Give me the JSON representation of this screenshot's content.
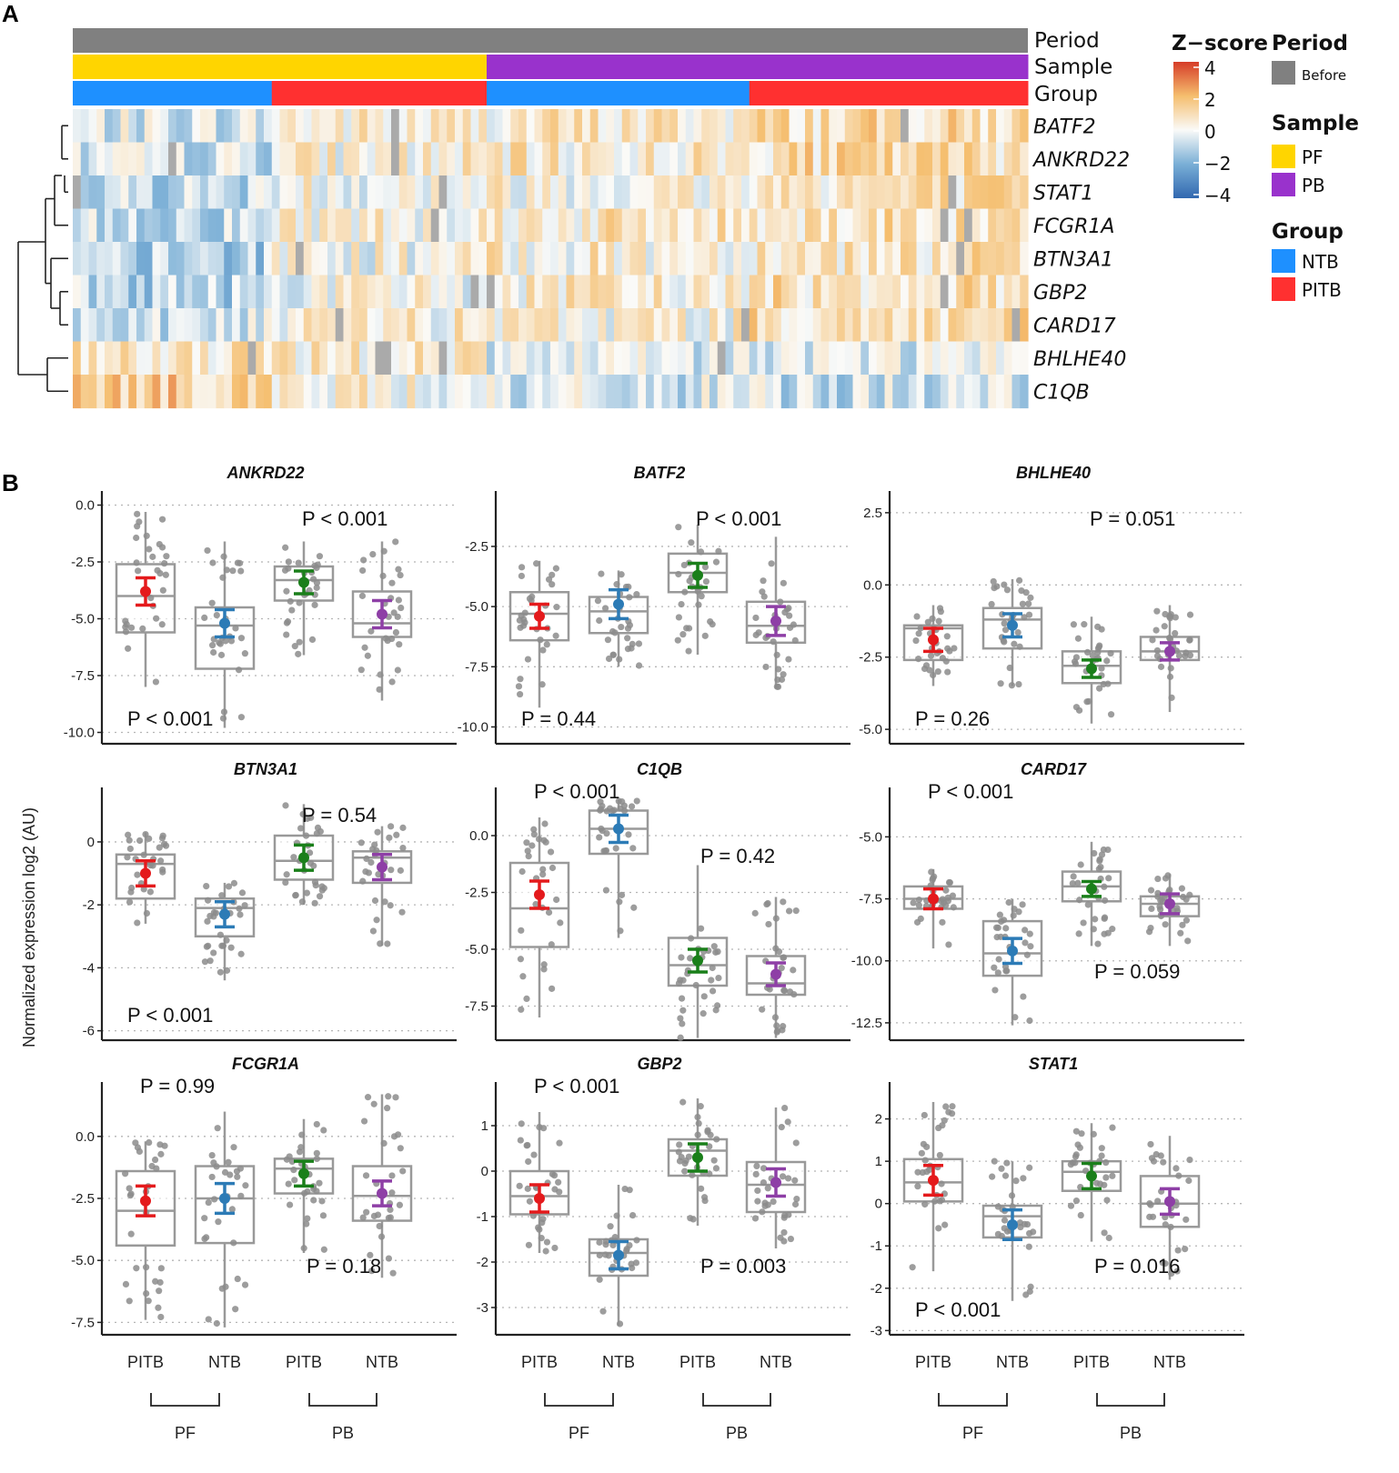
{
  "panel_labels": {
    "a": "A",
    "b": "B"
  },
  "heatmap": {
    "annotation_rows": [
      "Period",
      "Sample",
      "Group"
    ],
    "genes": [
      "BATF2",
      "ANKRD22",
      "STAT1",
      "FCGR1A",
      "BTN3A1",
      "GBP2",
      "CARD17",
      "BHLHE40",
      "C1QB"
    ],
    "n_samples": 120,
    "sample_blocks": [
      {
        "sample": "PF",
        "group": "NTB",
        "count": 25
      },
      {
        "sample": "PF",
        "group": "PITB",
        "count": 27
      },
      {
        "sample": "PB",
        "group": "NTB",
        "count": 33
      },
      {
        "sample": "PB",
        "group": "PITB",
        "count": 35
      }
    ],
    "colorbar": {
      "title": "Z−score",
      "ticks": [
        "4",
        "2",
        "0",
        "−2",
        "−4"
      ],
      "values": [
        4,
        2,
        0,
        -2,
        -4
      ]
    },
    "legend": {
      "period": {
        "title": "Period",
        "items": [
          {
            "label": "Before",
            "color": "#808080"
          }
        ]
      },
      "sample": {
        "title": "Sample",
        "items": [
          {
            "label": "PF",
            "color": "#FFD500"
          },
          {
            "label": "PB",
            "color": "#9932CC"
          }
        ]
      },
      "group": {
        "title": "Group",
        "items": [
          {
            "label": "NTB",
            "color": "#1E90FF"
          },
          {
            "label": "PITB",
            "color": "#FF3030"
          }
        ]
      }
    }
  },
  "boxplots": {
    "y_axis_label": "Normalized expression  log2 (AU)",
    "x_categories": [
      "PITB",
      "NTB",
      "PITB",
      "NTB"
    ],
    "brackets": [
      "PF",
      "PB"
    ],
    "colors": {
      "PF_PITB": "#E41A1C",
      "PF_NTB": "#2C7BB6",
      "PB_PITB": "#1A7F1A",
      "PB_NTB": "#8E3FA6"
    }
  },
  "chart_data": [
    {
      "type": "box",
      "title": "ANKRD22",
      "ylim": [
        -10.5,
        0.3
      ],
      "yticks": [
        0.0,
        -2.5,
        -5.0,
        -7.5,
        -10.0
      ],
      "tick_labels": [
        "0.0",
        "-2.5",
        "-5.0",
        "-7.5",
        "-10.0"
      ],
      "groups": [
        {
          "label": "PITB",
          "q1": -5.6,
          "median": -4.0,
          "q3": -2.6,
          "wlo": -8.0,
          "whi": -0.3,
          "mean": -3.8,
          "ci": 0.6
        },
        {
          "label": "NTB",
          "q1": -7.2,
          "median": -5.3,
          "q3": -4.5,
          "wlo": -9.8,
          "whi": -1.6,
          "mean": -5.2,
          "ci": 0.6
        },
        {
          "label": "PITB",
          "q1": -4.2,
          "median": -3.3,
          "q3": -2.7,
          "wlo": -6.6,
          "whi": -1.6,
          "mean": -3.4,
          "ci": 0.5
        },
        {
          "label": "NTB",
          "q1": -5.8,
          "median": -5.2,
          "q3": -3.8,
          "wlo": -8.6,
          "whi": -1.6,
          "mean": -4.8,
          "ci": 0.6
        }
      ],
      "pvalues": [
        {
          "text": "P < 0.001",
          "pos": "bottom-left"
        },
        {
          "text": "P < 0.001",
          "pos": "top-right"
        }
      ]
    },
    {
      "type": "box",
      "title": "BATF2",
      "ylim": [
        -10.7,
        -0.5
      ],
      "yticks": [
        -2.5,
        -5.0,
        -7.5,
        -10.0
      ],
      "tick_labels": [
        "-2.5",
        "-5.0",
        "-7.5",
        "-10.0"
      ],
      "groups": [
        {
          "label": "PITB",
          "q1": -6.4,
          "median": -5.3,
          "q3": -4.4,
          "wlo": -9.2,
          "whi": -3.1,
          "mean": -5.4,
          "ci": 0.5
        },
        {
          "label": "NTB",
          "q1": -6.1,
          "median": -5.2,
          "q3": -4.6,
          "wlo": -7.5,
          "whi": -3.5,
          "mean": -4.9,
          "ci": 0.6
        },
        {
          "label": "PITB",
          "q1": -4.4,
          "median": -3.6,
          "q3": -2.8,
          "wlo": -7.0,
          "whi": -1.6,
          "mean": -3.7,
          "ci": 0.5
        },
        {
          "label": "NTB",
          "q1": -6.5,
          "median": -5.8,
          "q3": -4.8,
          "wlo": -8.4,
          "whi": -2.1,
          "mean": -5.6,
          "ci": 0.6
        }
      ],
      "pvalues": [
        {
          "text": "P = 0.44",
          "pos": "bottom-left"
        },
        {
          "text": "P < 0.001",
          "pos": "top-right"
        }
      ]
    },
    {
      "type": "box",
      "title": "BHLHE40",
      "ylim": [
        -5.5,
        3.0
      ],
      "yticks": [
        2.5,
        0.0,
        -2.5,
        -5.0
      ],
      "tick_labels": [
        "2.5",
        "0.0",
        "-2.5",
        "-5.0"
      ],
      "groups": [
        {
          "label": "PITB",
          "q1": -2.6,
          "median": -1.5,
          "q3": -1.4,
          "wlo": -3.5,
          "whi": -0.7,
          "mean": -1.9,
          "ci": 0.4
        },
        {
          "label": "NTB",
          "q1": -2.2,
          "median": -1.2,
          "q3": -0.8,
          "wlo": -3.5,
          "whi": 0.2,
          "mean": -1.4,
          "ci": 0.4
        },
        {
          "label": "PITB",
          "q1": -3.4,
          "median": -2.8,
          "q3": -2.3,
          "wlo": -4.8,
          "whi": -1.1,
          "mean": -2.9,
          "ci": 0.3
        },
        {
          "label": "NTB",
          "q1": -2.6,
          "median": -2.3,
          "q3": -1.8,
          "wlo": -4.4,
          "whi": -0.7,
          "mean": -2.3,
          "ci": 0.3
        }
      ],
      "pvalues": [
        {
          "text": "P = 0.26",
          "pos": "bottom-left"
        },
        {
          "text": "P = 0.051",
          "pos": "top-right"
        }
      ]
    },
    {
      "type": "box",
      "title": "BTN3A1",
      "ylim": [
        -6.3,
        1.5
      ],
      "yticks": [
        0,
        -2,
        -4,
        -6
      ],
      "tick_labels": [
        "0",
        "-2",
        "-4",
        "-6"
      ],
      "groups": [
        {
          "label": "PITB",
          "q1": -1.8,
          "median": -0.7,
          "q3": -0.4,
          "wlo": -2.6,
          "whi": 0.3,
          "mean": -1.0,
          "ci": 0.4
        },
        {
          "label": "NTB",
          "q1": -3.0,
          "median": -2.1,
          "q3": -1.8,
          "wlo": -4.4,
          "whi": -1.3,
          "mean": -2.3,
          "ci": 0.4
        },
        {
          "label": "PITB",
          "q1": -1.2,
          "median": -0.6,
          "q3": 0.2,
          "wlo": -2.0,
          "whi": 1.2,
          "mean": -0.5,
          "ci": 0.4
        },
        {
          "label": "NTB",
          "q1": -1.3,
          "median": -0.5,
          "q3": -0.3,
          "wlo": -3.3,
          "whi": 0.5,
          "mean": -0.8,
          "ci": 0.4
        }
      ],
      "pvalues": [
        {
          "text": "P < 0.001",
          "pos": "bottom-left"
        },
        {
          "text": "P = 0.54",
          "pos": "top-right"
        }
      ]
    },
    {
      "type": "box",
      "title": "C1QB",
      "ylim": [
        -9.0,
        1.8
      ],
      "yticks": [
        0.0,
        -2.5,
        -5.0,
        -7.5
      ],
      "tick_labels": [
        "0.0",
        "-2.5",
        "-5.0",
        "-7.5"
      ],
      "groups": [
        {
          "label": "PITB",
          "q1": -4.9,
          "median": -3.2,
          "q3": -1.2,
          "wlo": -8.0,
          "whi": 0.8,
          "mean": -2.6,
          "ci": 0.6
        },
        {
          "label": "NTB",
          "q1": -0.8,
          "median": 0.3,
          "q3": 1.1,
          "wlo": -4.5,
          "whi": 1.6,
          "mean": 0.3,
          "ci": 0.6
        },
        {
          "label": "PITB",
          "q1": -6.6,
          "median": -5.7,
          "q3": -4.5,
          "wlo": -8.9,
          "whi": -1.3,
          "mean": -5.5,
          "ci": 0.5
        },
        {
          "label": "NTB",
          "q1": -7.0,
          "median": -6.5,
          "q3": -5.3,
          "wlo": -8.9,
          "whi": -2.7,
          "mean": -6.1,
          "ci": 0.5
        }
      ],
      "pvalues": [
        {
          "text": "P < 0.001",
          "pos": "top-left"
        },
        {
          "text": "P = 0.42",
          "pos": "mid-right"
        }
      ]
    },
    {
      "type": "box",
      "title": "CARD17",
      "ylim": [
        -13.2,
        -3.3
      ],
      "yticks": [
        -5.0,
        -7.5,
        -10.0,
        -12.5
      ],
      "tick_labels": [
        "-5.0",
        "-7.5",
        "-10.0",
        "-12.5"
      ],
      "groups": [
        {
          "label": "PITB",
          "q1": -7.9,
          "median": -7.5,
          "q3": -7.0,
          "wlo": -9.5,
          "whi": -6.3,
          "mean": -7.5,
          "ci": 0.4
        },
        {
          "label": "NTB",
          "q1": -10.6,
          "median": -9.7,
          "q3": -8.4,
          "wlo": -12.6,
          "whi": -7.5,
          "mean": -9.6,
          "ci": 0.5
        },
        {
          "label": "PITB",
          "q1": -7.6,
          "median": -7.0,
          "q3": -6.4,
          "wlo": -9.4,
          "whi": -5.2,
          "mean": -7.1,
          "ci": 0.3
        },
        {
          "label": "NTB",
          "q1": -8.2,
          "median": -7.7,
          "q3": -7.4,
          "wlo": -9.4,
          "whi": -6.5,
          "mean": -7.7,
          "ci": 0.4
        }
      ],
      "pvalues": [
        {
          "text": "P < 0.001",
          "pos": "top-left"
        },
        {
          "text": "P = 0.059",
          "pos": "bottom-right"
        }
      ]
    },
    {
      "type": "box",
      "title": "FCGR1A",
      "ylim": [
        -8.0,
        1.9
      ],
      "yticks": [
        0.0,
        -2.5,
        -5.0,
        -7.5
      ],
      "tick_labels": [
        "0.0",
        "-2.5",
        "-5.0",
        "-7.5"
      ],
      "groups": [
        {
          "label": "PITB",
          "q1": -4.4,
          "median": -3.0,
          "q3": -1.4,
          "wlo": -7.4,
          "whi": -0.2,
          "mean": -2.6,
          "ci": 0.6
        },
        {
          "label": "NTB",
          "q1": -4.3,
          "median": -2.5,
          "q3": -1.2,
          "wlo": -7.7,
          "whi": 1.0,
          "mean": -2.5,
          "ci": 0.6
        },
        {
          "label": "PITB",
          "q1": -2.3,
          "median": -1.3,
          "q3": -0.9,
          "wlo": -4.7,
          "whi": 0.7,
          "mean": -1.5,
          "ci": 0.5
        },
        {
          "label": "NTB",
          "q1": -3.4,
          "median": -2.4,
          "q3": -1.2,
          "wlo": -5.7,
          "whi": 1.7,
          "mean": -2.3,
          "ci": 0.5
        }
      ],
      "pvalues": [
        {
          "text": "P = 0.99",
          "pos": "top-left"
        },
        {
          "text": "P = 0.18",
          "pos": "bottom-right"
        }
      ]
    },
    {
      "type": "box",
      "title": "GBP2",
      "ylim": [
        -3.6,
        1.8
      ],
      "yticks": [
        1,
        0,
        -1,
        -2,
        -3
      ],
      "tick_labels": [
        "1",
        "0",
        "-1",
        "-2",
        "-3"
      ],
      "groups": [
        {
          "label": "PITB",
          "q1": -0.95,
          "median": -0.55,
          "q3": 0.0,
          "wlo": -1.8,
          "whi": 1.3,
          "mean": -0.6,
          "ci": 0.3
        },
        {
          "label": "NTB",
          "q1": -2.3,
          "median": -1.8,
          "q3": -1.5,
          "wlo": -3.4,
          "whi": -0.3,
          "mean": -1.85,
          "ci": 0.3
        },
        {
          "label": "PITB",
          "q1": -0.1,
          "median": 0.45,
          "q3": 0.7,
          "wlo": -1.2,
          "whi": 1.6,
          "mean": 0.3,
          "ci": 0.3
        },
        {
          "label": "NTB",
          "q1": -0.9,
          "median": -0.3,
          "q3": 0.2,
          "wlo": -1.7,
          "whi": 1.4,
          "mean": -0.25,
          "ci": 0.3
        }
      ],
      "pvalues": [
        {
          "text": "P < 0.001",
          "pos": "top-left"
        },
        {
          "text": "P = 0.003",
          "pos": "bottom-right"
        }
      ]
    },
    {
      "type": "box",
      "title": "STAT1",
      "ylim": [
        -3.1,
        2.7
      ],
      "yticks": [
        2,
        1,
        0,
        -1,
        -2,
        -3
      ],
      "tick_labels": [
        "2",
        "1",
        "0",
        "-1",
        "-2",
        "-3"
      ],
      "groups": [
        {
          "label": "PITB",
          "q1": 0.05,
          "median": 0.5,
          "q3": 1.05,
          "wlo": -1.6,
          "whi": 2.4,
          "mean": 0.55,
          "ci": 0.35
        },
        {
          "label": "NTB",
          "q1": -0.8,
          "median": -0.3,
          "q3": -0.05,
          "wlo": -2.3,
          "whi": 1.0,
          "mean": -0.5,
          "ci": 0.35
        },
        {
          "label": "PITB",
          "q1": 0.3,
          "median": 0.75,
          "q3": 1.0,
          "wlo": -0.9,
          "whi": 1.9,
          "mean": 0.65,
          "ci": 0.3
        },
        {
          "label": "NTB",
          "q1": -0.55,
          "median": 0.0,
          "q3": 0.65,
          "wlo": -1.8,
          "whi": 1.6,
          "mean": 0.05,
          "ci": 0.3
        }
      ],
      "pvalues": [
        {
          "text": "P < 0.001",
          "pos": "bottom-left"
        },
        {
          "text": "P = 0.016",
          "pos": "bottom-right"
        }
      ]
    }
  ]
}
